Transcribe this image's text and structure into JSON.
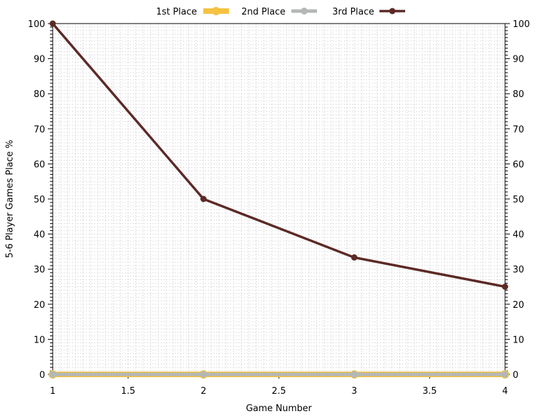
{
  "chart_data": {
    "type": "line",
    "xlabel": "Game Number",
    "ylabel": "5-6 Player Games Place %",
    "xlim": [
      1,
      4
    ],
    "ylim": [
      0,
      100
    ],
    "x_ticks": [
      1,
      1.5,
      2,
      2.5,
      3,
      3.5,
      4
    ],
    "y_ticks": [
      0,
      10,
      20,
      30,
      40,
      50,
      60,
      70,
      80,
      90,
      100
    ],
    "grid": true,
    "right_axis_mirrored": true,
    "legend_position": "top-center",
    "series": [
      {
        "name": "1st Place",
        "color": "#f5c242",
        "x": [
          1,
          2,
          3,
          4
        ],
        "y": [
          0,
          0,
          0,
          0
        ]
      },
      {
        "name": "2nd Place",
        "color": "#b3b8b5",
        "x": [
          1,
          2,
          3,
          4
        ],
        "y": [
          0,
          0,
          0,
          0
        ]
      },
      {
        "name": "3rd Place",
        "color": "#5c2a26",
        "x": [
          1,
          2,
          3,
          4
        ],
        "y": [
          100,
          50,
          33.33,
          25
        ]
      }
    ]
  }
}
